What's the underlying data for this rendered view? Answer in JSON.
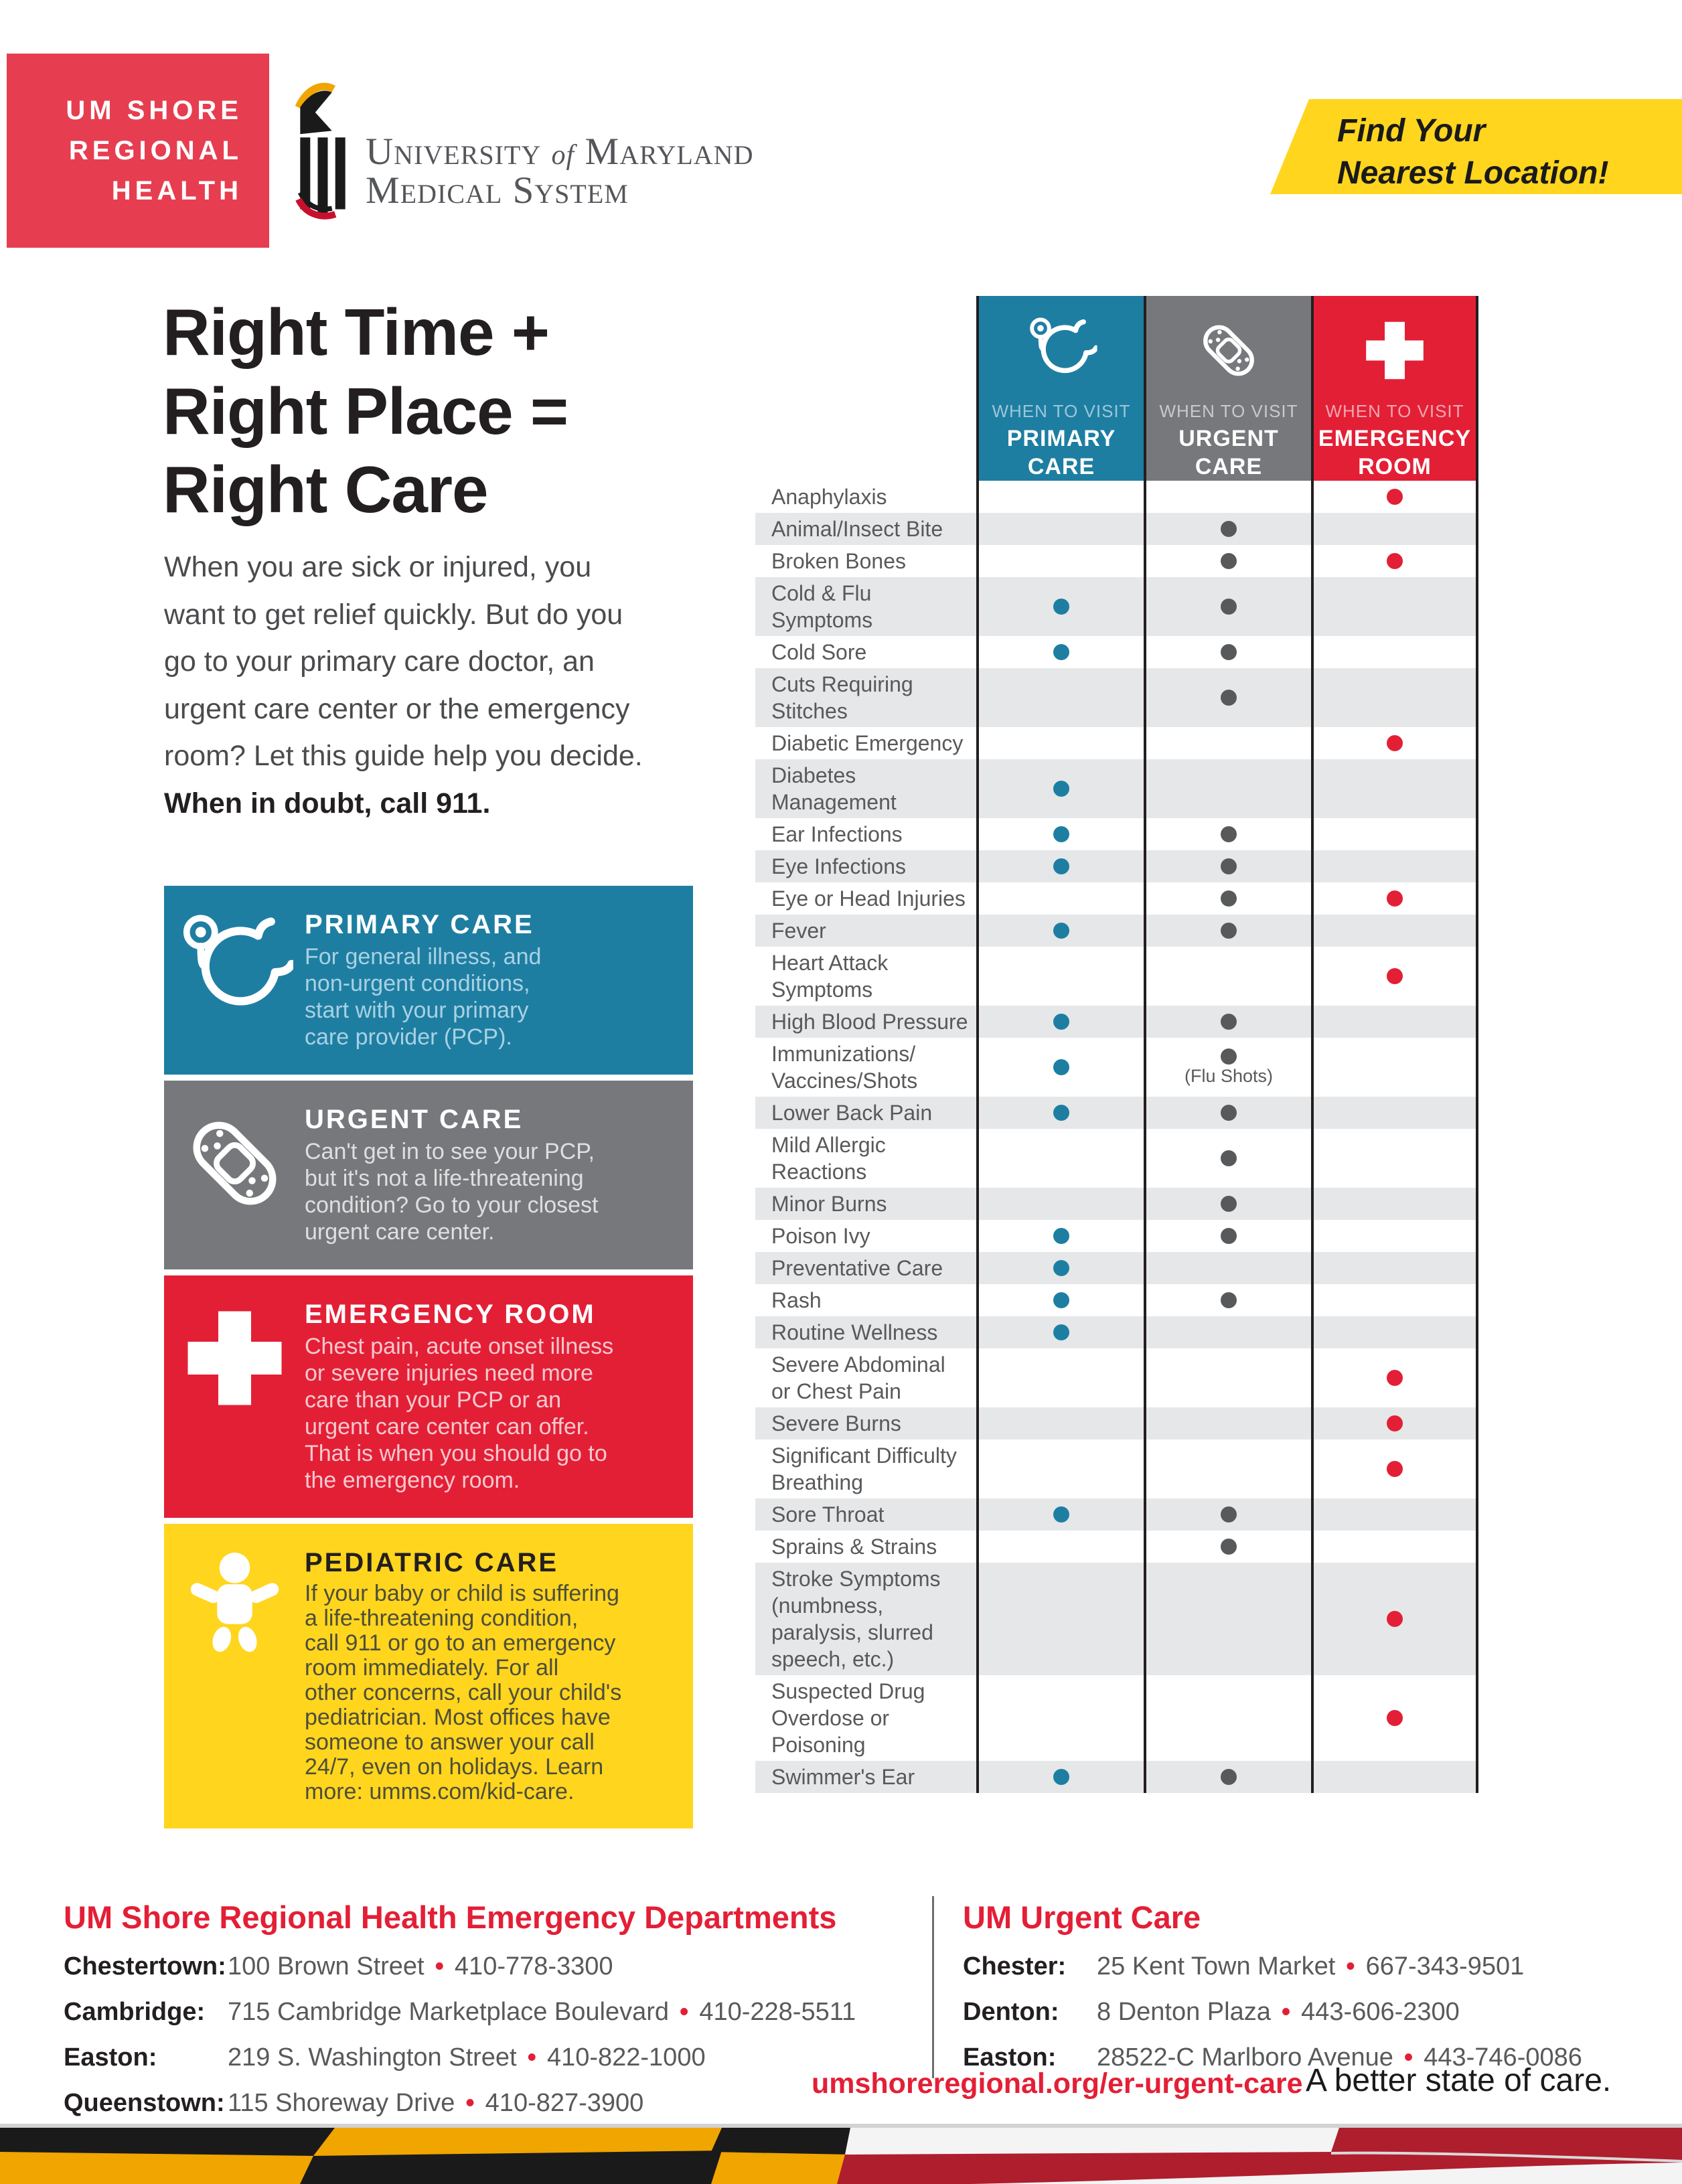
{
  "colors": {
    "brand_red": "#E31F36",
    "logo_red": "#E63E50",
    "teal": "#1E7EA2",
    "gray": "#77787B",
    "yellow": "#FFD51E",
    "stripe": "#E6E7E8",
    "label_gray": "#58595B",
    "flag_red": "#AF1E2D",
    "flag_gold": "#F0A500"
  },
  "header": {
    "logo_lines": "UM SHORE\nREGIONAL\nHEALTH",
    "umms_line1_pre": "University",
    "umms_line1_mid": "of",
    "umms_line1_post": "Maryland",
    "umms_line2": "Medical System",
    "banner_text": "Find Your\nNearest Location!"
  },
  "hero": {
    "title": "Right Time +\nRight Place =\nRight Care",
    "intro": "When you are sick or injured, you\nwant to get relief quickly. But do you\ngo to your primary care doctor, an\nurgent care center or the emergency\nroom? Let this  guide help you decide.",
    "intro_bold": "When in doubt, call 911."
  },
  "care_boxes": [
    {
      "id": "primary",
      "icon": "stethoscope-icon",
      "bg": "#1E7EA2",
      "title_color": "#FFFFFF",
      "body_color": "#A9D1E2",
      "title": "PRIMARY CARE",
      "body": "For general illness, and\nnon-urgent conditions,\nstart with your primary\ncare provider (PCP)."
    },
    {
      "id": "urgent",
      "icon": "bandage-icon",
      "bg": "#77787B",
      "title_color": "#FFFFFF",
      "body_color": "#DFDFE0",
      "title": "URGENT CARE",
      "body": "Can't get in to see your PCP,\nbut it's not a life-threatening\ncondition? Go to your closest\nurgent care center."
    },
    {
      "id": "emergency",
      "icon": "cross-icon",
      "bg": "#E31F36",
      "title_color": "#FFFFFF",
      "body_color": "#F6C9CF",
      "title": "EMERGENCY ROOM",
      "body": "Chest pain, acute onset illness\nor severe injuries need more\ncare than your PCP or an\nurgent care center can offer.\nThat is when you should go to\nthe emergency room."
    },
    {
      "id": "pediatric",
      "icon": "baby-icon",
      "bg": "#FFD51E",
      "title_color": "#231F20",
      "body_color": "#4D4E3A",
      "title": "PEDIATRIC CARE",
      "body": "If your baby or child is suffering\na life-threatening condition,\ncall 911 or go to an emergency\nroom immediately. For all\nother concerns, call your child's\npediatrician. Most offices have\nsomeone to answer your call\n24/7, even on holidays. Learn\nmore: umms.com/kid-care."
    }
  ],
  "table": {
    "columns": [
      {
        "id": "primary-care",
        "icon": "stethoscope-icon",
        "bg": "#1E7EA2",
        "kicker": "WHEN TO VISIT",
        "kicker_color": "#9CC6D9",
        "name": "PRIMARY\nCARE",
        "dot": "#1E7EA2"
      },
      {
        "id": "urgent-care",
        "icon": "bandage-icon",
        "bg": "#77787B",
        "kicker": "WHEN TO VISIT",
        "kicker_color": "#C8C9CA",
        "name": "URGENT\nCARE",
        "dot": "#58595B"
      },
      {
        "id": "emergency-room",
        "icon": "cross-icon",
        "bg": "#E31F36",
        "kicker": "WHEN TO VISIT",
        "kicker_color": "#F2A6B0",
        "name": "EMERGENCY\nROOM",
        "dot": "#E31F36"
      }
    ],
    "rows": [
      {
        "label": "Anaphylaxis",
        "pc": false,
        "uc": false,
        "er": true
      },
      {
        "label": "Animal/Insect Bite",
        "pc": false,
        "uc": true,
        "er": false
      },
      {
        "label": "Broken Bones",
        "pc": false,
        "uc": true,
        "er": true
      },
      {
        "label": "Cold & Flu\nSymptoms",
        "pc": true,
        "uc": true,
        "er": false
      },
      {
        "label": "Cold Sore",
        "pc": true,
        "uc": true,
        "er": false
      },
      {
        "label": "Cuts Requiring\nStitches",
        "pc": false,
        "uc": true,
        "er": false
      },
      {
        "label": "Diabetic Emergency",
        "pc": false,
        "uc": false,
        "er": true
      },
      {
        "label": "Diabetes\nManagement",
        "pc": true,
        "uc": false,
        "er": false
      },
      {
        "label": "Ear Infections",
        "pc": true,
        "uc": true,
        "er": false
      },
      {
        "label": "Eye Infections",
        "pc": true,
        "uc": true,
        "er": false
      },
      {
        "label": "Eye or Head Injuries",
        "pc": false,
        "uc": true,
        "er": true
      },
      {
        "label": "Fever",
        "pc": true,
        "uc": true,
        "er": false
      },
      {
        "label": "Heart Attack\nSymptoms",
        "pc": false,
        "uc": false,
        "er": true
      },
      {
        "label": "High Blood Pressure",
        "pc": true,
        "uc": true,
        "er": false
      },
      {
        "label": "Immunizations/\nVaccines/Shots",
        "pc": true,
        "uc": true,
        "uc_note": "(Flu Shots)",
        "er": false
      },
      {
        "label": "Lower Back Pain",
        "pc": true,
        "uc": true,
        "er": false
      },
      {
        "label": "Mild Allergic\nReactions",
        "pc": false,
        "uc": true,
        "er": false
      },
      {
        "label": "Minor Burns",
        "pc": false,
        "uc": true,
        "er": false
      },
      {
        "label": "Poison Ivy",
        "pc": true,
        "uc": true,
        "er": false
      },
      {
        "label": "Preventative Care",
        "pc": true,
        "uc": false,
        "er": false
      },
      {
        "label": "Rash",
        "pc": true,
        "uc": true,
        "er": false
      },
      {
        "label": "Routine Wellness",
        "pc": true,
        "uc": false,
        "er": false
      },
      {
        "label": "Severe Abdominal\nor Chest Pain",
        "pc": false,
        "uc": false,
        "er": true
      },
      {
        "label": "Severe Burns",
        "pc": false,
        "uc": false,
        "er": true
      },
      {
        "label": "Significant Difficulty\nBreathing",
        "pc": false,
        "uc": false,
        "er": true
      },
      {
        "label": "Sore Throat",
        "pc": true,
        "uc": true,
        "er": false
      },
      {
        "label": "Sprains & Strains",
        "pc": false,
        "uc": true,
        "er": false
      },
      {
        "label": "Stroke Symptoms\n(numbness,\nparalysis, slurred\nspeech, etc.)",
        "pc": false,
        "uc": false,
        "er": true
      },
      {
        "label": "Suspected Drug\nOverdose or\nPoisoning",
        "pc": false,
        "uc": false,
        "er": true
      },
      {
        "label": "Swimmer's Ear",
        "pc": true,
        "uc": true,
        "er": false
      }
    ]
  },
  "footer": {
    "ed_heading": "UM Shore Regional Health Emergency Departments",
    "ed_locations": [
      {
        "name": "Chestertown:",
        "address": "100 Brown Street",
        "phone": "410-778-3300"
      },
      {
        "name": "Cambridge:",
        "address": "715 Cambridge Marketplace Boulevard",
        "phone": "410-228-5511"
      },
      {
        "name": "Easton:",
        "address": "219 S. Washington Street",
        "phone": "410-822-1000"
      },
      {
        "name": "Queenstown:",
        "address": "115 Shoreway Drive",
        "phone": "410-827-3900"
      }
    ],
    "uc_heading": "UM Urgent Care",
    "uc_locations": [
      {
        "name": "Chester:",
        "address": "25 Kent Town Market",
        "phone": "667-343-9501"
      },
      {
        "name": "Denton:",
        "address": "8 Denton Plaza",
        "phone": "443-606-2300"
      },
      {
        "name": "Easton:",
        "address": "28522-C Marlboro Avenue",
        "phone": "443-746-0086"
      }
    ],
    "url": "umshoreregional.org/er-urgent-care",
    "tagline": "A better state of care."
  }
}
